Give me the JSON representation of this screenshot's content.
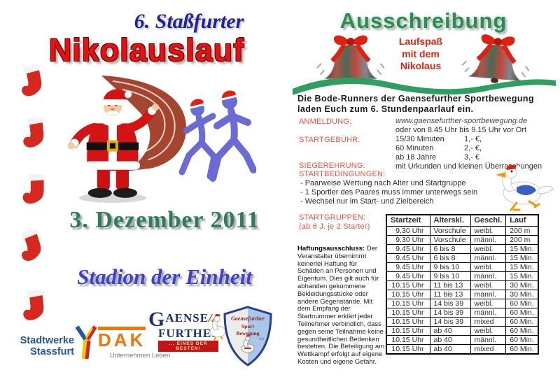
{
  "left": {
    "edition_subtitle": "6. Staßfurter",
    "title": "Nikolauslauf",
    "date": "3. Dezember 2011",
    "venue": "Stadion der Einheit",
    "sponsors": {
      "stadtwerke": {
        "line1": "Stadtwerke",
        "line2": "Stassfurt"
      },
      "dak": {
        "name": "DAK",
        "tagline": "Unternehmen Leben"
      },
      "gaensefurther": {
        "word1": "AENSE",
        "initial": "G",
        "mark": "//",
        "word2": "FURTHER",
        "banner": "... eines der Besten!"
      },
      "shield": {
        "arc": "Gaensefurther",
        "line1": "Sport",
        "line2": "Bewegung",
        "suffix": "e.V."
      }
    }
  },
  "right": {
    "header": "Ausschreibung",
    "tagline_lines": [
      "Laufspaß",
      "mit dem",
      "Nikolaus"
    ],
    "intro_line1": "Die Bode-Runners der Gaensefurther Sportbewegung",
    "intro_line2": "laden Euch zum 6. Stundenpaarlauf ein.",
    "anmeldung": {
      "label": "ANMELDUNG:",
      "web": "www.gaensefurther-sportbewegung.de",
      "alt": "oder von 8.45 Uhr bis 9.15 Uhr  vor Ort"
    },
    "startgebuehr": {
      "label": "STARTGEBÜHR:",
      "fees": [
        {
          "item": "15/30 Minuten",
          "price": "1,- €,"
        },
        {
          "item": "60 Minuten",
          "price": "2,- €,"
        },
        {
          "item": "ab 18 Jahre",
          "price": "3,- €"
        }
      ]
    },
    "siegerehrung": {
      "label": "SIEGEREHRUNG:",
      "value": "mit Urkunden und kleinen Überraschungen"
    },
    "startbedingungen": {
      "label": "STARTBEDINGUNGEN:",
      "items": [
        "- Paarweise Wertung nach Alter und Startgruppe",
        "- 1 Sportler des Paares muss immer unterwegs sein",
        "- Wechsel nur im Start- und Zielbereich"
      ]
    },
    "startgruppen": {
      "label": "STARTGRUPPEN:",
      "note": "(ab 6 J. je 2 Starter)"
    },
    "disclaimer": {
      "title": "Haftungsausschluss:",
      "text": " Der Veranstalter übernimmt keinerlei Haftung für Schäden an Personen und Eigentum. Dies gilt auch für abhanden gekommene Bekleidungsstücke oder andere Gegenstände. Mit dem Empfang der Startnummer erklärt jeder Teilnehmer verbindlich, dass gegen seine Teilnahme keine gesundheitlichen Bedenken bestehen. Die Beteiligung am Wettkampf erfolgt auf eigene Kosten und eigene Gefahr."
    },
    "table": {
      "headers": [
        "Startzeit",
        "Alterskl.",
        "Geschl.",
        "Lauf"
      ],
      "rows": [
        [
          "9.30 Uhr",
          "Vorschule",
          "weibl.",
          "200 m"
        ],
        [
          "9.30 Uhr",
          "Vorschule",
          "männl.",
          "200 m"
        ],
        [
          "9.45 Uhr",
          "6 bis 8",
          "weibl.",
          "15 Min."
        ],
        [
          "9.45 Uhr",
          "6 bis 8",
          "männl.",
          "15 Min."
        ],
        [
          "9.45 Uhr",
          "9 bis 10",
          "weibl.",
          "15 Min."
        ],
        [
          "9.45 Uhr",
          "9 bis 10",
          "männl.",
          "15 Min."
        ],
        [
          "10.15 Uhr",
          "11 bis 13",
          "weibl.",
          "30 Min."
        ],
        [
          "10.15 Uhr",
          "11 bis 13",
          "männl.",
          "30 Min."
        ],
        [
          "10.15 Uhr",
          "14 bis 39",
          "weibl.",
          "60 Min."
        ],
        [
          "10.15 Uhr",
          "14 bis 39",
          "männl.",
          "60 Min."
        ],
        [
          "10.15 Uhr",
          "14 bis 39",
          "mixed",
          "60 Min."
        ],
        [
          "10.15 Uhr",
          "ab 40",
          "weibl.",
          "60 Min."
        ],
        [
          "10.15 Uhr",
          "ab 40",
          "männl.",
          "60 Min."
        ],
        [
          "10.15 Uhr",
          "ab 40",
          "mixed",
          "60 Min."
        ]
      ]
    }
  },
  "colors": {
    "title_red": "#e51212",
    "subtitle_blue": "#22229c",
    "header_green": "#2e8b57",
    "date_green": "#2d7d5a",
    "venue_blue": "#4040cf",
    "label_accent": "#ff4f38",
    "wave_green": "#2f9e63",
    "runner_blue": "#6b6bd6",
    "stocking_red": "#d6281e",
    "tagline_red": "#e8250c"
  }
}
